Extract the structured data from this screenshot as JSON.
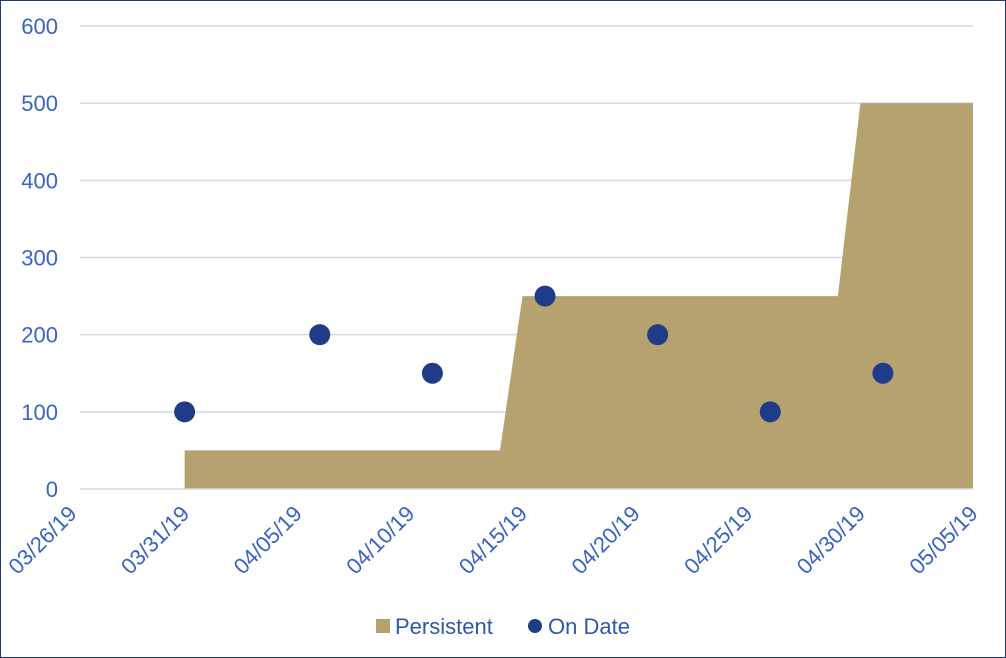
{
  "chart_data": {
    "type": "area",
    "title": "",
    "xlabel": "",
    "ylabel": "",
    "ylim": [
      0,
      600
    ],
    "yticks": [
      "0",
      "100",
      "200",
      "300",
      "400",
      "500",
      "600"
    ],
    "xlim": [
      "03/26/19",
      "05/05/19"
    ],
    "xticks": [
      "03/26/19",
      "03/31/19",
      "04/05/19",
      "04/10/19",
      "04/15/19",
      "04/20/19",
      "04/25/19",
      "04/30/19",
      "05/05/19"
    ],
    "grid": true,
    "legend_position": "bottom",
    "series": [
      {
        "name": "Persistent",
        "type": "area",
        "color": "#b5a26f",
        "points": [
          {
            "x": "03/31/19",
            "y": 50
          },
          {
            "x": "04/14/19",
            "y": 50
          },
          {
            "x": "04/15/19",
            "y": 250
          },
          {
            "x": "04/29/19",
            "y": 250
          },
          {
            "x": "04/30/19",
            "y": 500
          },
          {
            "x": "05/05/19",
            "y": 500
          }
        ]
      },
      {
        "name": "On Date",
        "type": "scatter",
        "color": "#1f3c88",
        "points": [
          {
            "x": "03/31/19",
            "y": 100
          },
          {
            "x": "04/06/19",
            "y": 200
          },
          {
            "x": "04/11/19",
            "y": 150
          },
          {
            "x": "04/16/19",
            "y": 250
          },
          {
            "x": "04/21/19",
            "y": 200
          },
          {
            "x": "04/26/19",
            "y": 100
          },
          {
            "x": "05/01/19",
            "y": 150
          }
        ]
      }
    ]
  }
}
